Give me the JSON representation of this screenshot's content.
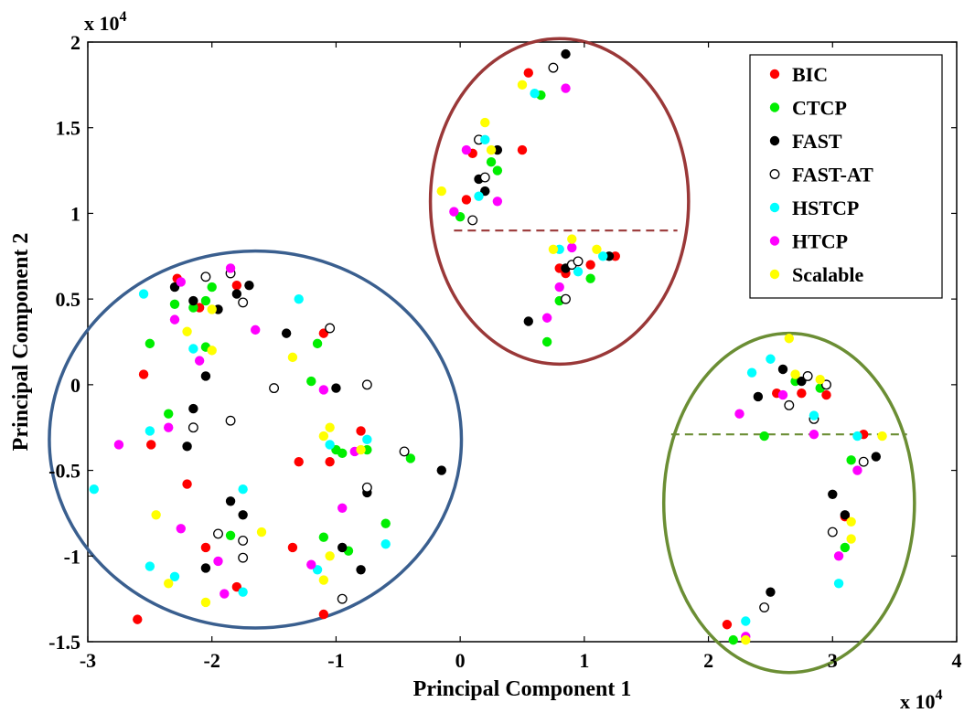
{
  "chart_data": {
    "type": "scatter",
    "xlabel": "Principal Component 1",
    "ylabel": "Principal Component 2",
    "x_multiplier": "x 10^4",
    "y_multiplier": "x 10^4",
    "xlim": [
      -3,
      4
    ],
    "ylim": [
      -1.5,
      2
    ],
    "x_ticks": [
      "-3",
      "-2",
      "-1",
      "0",
      "1",
      "2",
      "3",
      "4"
    ],
    "y_ticks": [
      "-1.5",
      "-1",
      "-0.5",
      "0",
      "0.5",
      "1",
      "1.5",
      "2"
    ],
    "legend_position": "top-right",
    "series": [
      {
        "name": "BIC",
        "color": "#ff0000",
        "marker": "filled",
        "points": [
          [
            -2.55,
            0.06
          ],
          [
            -2.49,
            -0.35
          ],
          [
            -2.2,
            -0.58
          ],
          [
            -2.28,
            0.62
          ],
          [
            -2.1,
            0.45
          ],
          [
            -2.05,
            -0.95
          ],
          [
            -1.8,
            0.58
          ],
          [
            -1.8,
            -1.18
          ],
          [
            -1.1,
            0.3
          ],
          [
            -1.05,
            -0.45
          ],
          [
            -1.1,
            -1.34
          ],
          [
            -1.3,
            -0.45
          ],
          [
            -1.35,
            -0.95
          ],
          [
            -0.8,
            -0.27
          ],
          [
            -2.6,
            -1.37
          ],
          [
            0.05,
            1.08
          ],
          [
            0.1,
            1.35
          ],
          [
            0.55,
            1.82
          ],
          [
            0.5,
            1.37
          ],
          [
            0.8,
            0.68
          ],
          [
            1.05,
            0.7
          ],
          [
            1.25,
            0.75
          ],
          [
            0.85,
            0.65
          ],
          [
            2.15,
            -1.4
          ],
          [
            2.55,
            -0.05
          ],
          [
            2.75,
            -0.05
          ],
          [
            2.95,
            -0.06
          ],
          [
            3.25,
            -0.29
          ],
          [
            3.1,
            -0.77
          ]
        ]
      },
      {
        "name": "CTCP",
        "color": "#00ee00",
        "marker": "filled",
        "points": [
          [
            -2.5,
            0.24
          ],
          [
            -2.3,
            0.47
          ],
          [
            -2.35,
            -0.17
          ],
          [
            -2.05,
            0.49
          ],
          [
            -2.0,
            0.57
          ],
          [
            -2.05,
            0.22
          ],
          [
            -1.85,
            -0.88
          ],
          [
            -1.2,
            0.02
          ],
          [
            -1.15,
            0.24
          ],
          [
            -1.0,
            -0.38
          ],
          [
            -0.75,
            -0.38
          ],
          [
            -0.9,
            -0.97
          ],
          [
            -0.6,
            -0.81
          ],
          [
            -0.95,
            -0.4
          ],
          [
            -0.4,
            -0.43
          ],
          [
            -1.1,
            -0.89
          ],
          [
            -2.15,
            0.45
          ],
          [
            0.0,
            0.98
          ],
          [
            0.25,
            1.3
          ],
          [
            0.3,
            1.25
          ],
          [
            0.65,
            1.69
          ],
          [
            0.8,
            0.49
          ],
          [
            1.05,
            0.62
          ],
          [
            0.7,
            0.25
          ],
          [
            2.2,
            -1.49
          ],
          [
            2.45,
            -0.3
          ],
          [
            2.7,
            0.02
          ],
          [
            2.9,
            -0.02
          ],
          [
            3.15,
            -0.44
          ],
          [
            3.1,
            -0.95
          ]
        ]
      },
      {
        "name": "FAST",
        "color": "#000000",
        "marker": "filled",
        "points": [
          [
            -2.3,
            0.57
          ],
          [
            -2.15,
            0.49
          ],
          [
            -1.95,
            0.44
          ],
          [
            -2.15,
            -0.14
          ],
          [
            -1.8,
            0.53
          ],
          [
            -1.7,
            0.58
          ],
          [
            -2.05,
            0.05
          ],
          [
            -2.2,
            -0.36
          ],
          [
            -2.05,
            -1.07
          ],
          [
            -1.85,
            -0.68
          ],
          [
            -1.75,
            -0.76
          ],
          [
            -1.4,
            0.3
          ],
          [
            -1.0,
            -0.02
          ],
          [
            -0.95,
            -0.95
          ],
          [
            -0.75,
            -0.63
          ],
          [
            -0.8,
            -1.08
          ],
          [
            -0.15,
            -0.5
          ],
          [
            0.15,
            1.2
          ],
          [
            0.2,
            1.13
          ],
          [
            0.3,
            1.37
          ],
          [
            0.85,
            1.93
          ],
          [
            0.55,
            0.37
          ],
          [
            0.85,
            0.68
          ],
          [
            1.2,
            0.75
          ],
          [
            2.5,
            -1.21
          ],
          [
            2.6,
            0.09
          ],
          [
            2.75,
            0.02
          ],
          [
            2.4,
            -0.07
          ],
          [
            3.35,
            -0.42
          ],
          [
            3.0,
            -0.64
          ],
          [
            3.1,
            -0.76
          ]
        ]
      },
      {
        "name": "FAST-AT",
        "color": "#000000",
        "marker": "hollow",
        "points": [
          [
            -2.15,
            -0.25
          ],
          [
            -2.05,
            0.63
          ],
          [
            -1.75,
            0.48
          ],
          [
            -1.85,
            0.65
          ],
          [
            -1.85,
            -0.21
          ],
          [
            -1.95,
            -0.87
          ],
          [
            -1.75,
            -0.91
          ],
          [
            -1.75,
            -1.01
          ],
          [
            -1.05,
            0.33
          ],
          [
            -1.5,
            -0.02
          ],
          [
            -0.75,
            0.0
          ],
          [
            -0.45,
            -0.39
          ],
          [
            -0.75,
            -0.6
          ],
          [
            -0.95,
            -1.25
          ],
          [
            0.15,
            1.43
          ],
          [
            0.2,
            1.21
          ],
          [
            0.1,
            0.96
          ],
          [
            0.75,
            1.85
          ],
          [
            0.9,
            0.7
          ],
          [
            0.85,
            0.5
          ],
          [
            0.95,
            0.72
          ],
          [
            2.45,
            -1.3
          ],
          [
            2.65,
            -0.12
          ],
          [
            2.8,
            0.05
          ],
          [
            2.85,
            -0.2
          ],
          [
            2.95,
            0.0
          ],
          [
            3.25,
            -0.45
          ],
          [
            3.0,
            -0.86
          ]
        ]
      },
      {
        "name": "HSTCP",
        "color": "#00ffff",
        "marker": "filled",
        "points": [
          [
            -2.55,
            0.53
          ],
          [
            -2.15,
            0.21
          ],
          [
            -2.5,
            -0.27
          ],
          [
            -2.5,
            -1.06
          ],
          [
            -2.3,
            -1.12
          ],
          [
            -1.75,
            -0.61
          ],
          [
            -1.75,
            -1.21
          ],
          [
            -1.3,
            0.5
          ],
          [
            -1.05,
            -0.35
          ],
          [
            -0.75,
            -0.32
          ],
          [
            -1.15,
            -1.08
          ],
          [
            -0.6,
            -0.93
          ],
          [
            -2.95,
            -0.61
          ],
          [
            0.15,
            1.1
          ],
          [
            0.2,
            1.43
          ],
          [
            0.6,
            1.7
          ],
          [
            0.8,
            0.79
          ],
          [
            0.95,
            0.66
          ],
          [
            1.15,
            0.75
          ],
          [
            2.3,
            -1.38
          ],
          [
            2.35,
            0.07
          ],
          [
            2.5,
            0.15
          ],
          [
            2.85,
            -0.18
          ],
          [
            3.2,
            -0.3
          ],
          [
            3.05,
            -1.16
          ]
        ]
      },
      {
        "name": "HTCP",
        "color": "#ff00ff",
        "marker": "filled",
        "points": [
          [
            -2.25,
            0.6
          ],
          [
            -2.3,
            0.38
          ],
          [
            -2.35,
            -0.25
          ],
          [
            -2.25,
            -0.84
          ],
          [
            -2.1,
            0.14
          ],
          [
            -1.85,
            0.68
          ],
          [
            -1.65,
            0.32
          ],
          [
            -1.95,
            -1.03
          ],
          [
            -1.9,
            -1.22
          ],
          [
            -2.75,
            -0.35
          ],
          [
            -1.1,
            -0.03
          ],
          [
            -0.95,
            -0.72
          ],
          [
            -1.2,
            -1.05
          ],
          [
            -0.85,
            -0.39
          ],
          [
            0.05,
            1.37
          ],
          [
            0.3,
            1.07
          ],
          [
            -0.05,
            1.01
          ],
          [
            0.85,
            1.73
          ],
          [
            0.7,
            0.39
          ],
          [
            0.9,
            0.8
          ],
          [
            0.8,
            0.57
          ],
          [
            2.3,
            -1.47
          ],
          [
            2.25,
            -0.17
          ],
          [
            2.6,
            -0.06
          ],
          [
            2.85,
            -0.29
          ],
          [
            3.2,
            -0.5
          ],
          [
            3.05,
            -1.0
          ]
        ]
      },
      {
        "name": "Scalable",
        "color": "#ffff00",
        "marker": "filled",
        "points": [
          [
            -2.2,
            0.31
          ],
          [
            -2.0,
            0.2
          ],
          [
            -2.0,
            0.44
          ],
          [
            -2.45,
            -0.76
          ],
          [
            -2.35,
            -1.16
          ],
          [
            -1.6,
            -0.86
          ],
          [
            -2.05,
            -1.27
          ],
          [
            -1.35,
            0.16
          ],
          [
            -1.05,
            -0.25
          ],
          [
            -1.1,
            -0.3
          ],
          [
            -1.05,
            -1.0
          ],
          [
            -1.1,
            -1.14
          ],
          [
            -0.8,
            -0.38
          ],
          [
            -0.15,
            1.13
          ],
          [
            0.2,
            1.53
          ],
          [
            0.25,
            1.37
          ],
          [
            0.5,
            1.75
          ],
          [
            0.75,
            0.79
          ],
          [
            0.9,
            0.85
          ],
          [
            1.1,
            0.79
          ],
          [
            2.3,
            -1.49
          ],
          [
            2.65,
            0.27
          ],
          [
            2.7,
            0.06
          ],
          [
            2.9,
            0.03
          ],
          [
            3.4,
            -0.3
          ],
          [
            3.15,
            -0.8
          ],
          [
            3.15,
            -0.9
          ]
        ]
      }
    ],
    "clusters": [
      {
        "name": "left",
        "color": "#3a5f8f",
        "cx": -1.65,
        "cy": -0.32,
        "rx": 1.66,
        "ry": 1.1
      },
      {
        "name": "top",
        "color": "#9a3838",
        "cx": 0.8,
        "cy": 1.07,
        "rx": 1.04,
        "ry": 0.95
      },
      {
        "name": "bottom-right",
        "color": "#6b8e34",
        "cx": 2.65,
        "cy": -0.69,
        "rx": 1.01,
        "ry": 0.99
      }
    ],
    "dashed_lines": [
      {
        "color": "#9a3838",
        "y": 0.9,
        "x1": -0.05,
        "x2": 1.75
      },
      {
        "color": "#6b8e34",
        "y": -0.29,
        "x1": 1.7,
        "x2": 3.6
      }
    ]
  }
}
